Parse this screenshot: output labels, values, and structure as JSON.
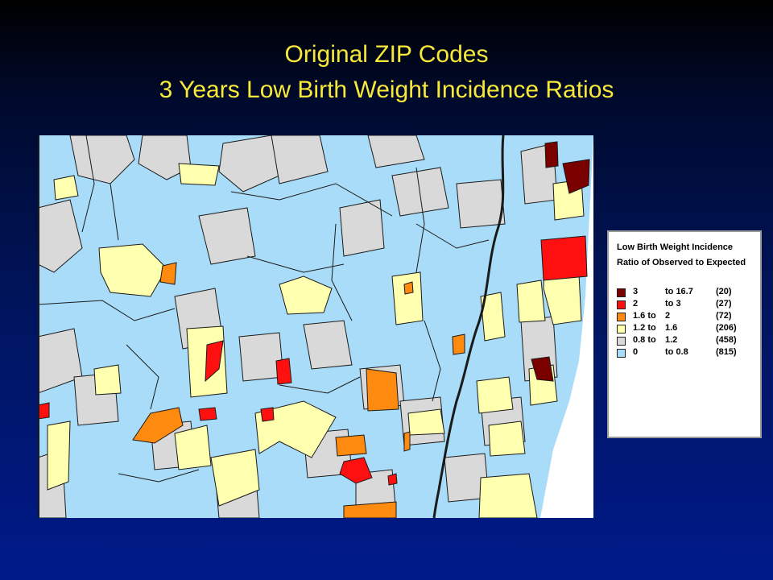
{
  "title": {
    "line1": "Original ZIP Codes",
    "line2": "3 Years Low Birth Weight Incidence Ratios"
  },
  "colors": {
    "cat_3_16_7": "#7a0000",
    "cat_2_3": "#ff1010",
    "cat_1_6_2": "#ff8a10",
    "cat_1_2_1_6": "#ffffb0",
    "cat_0_8_1_2": "#d9d9d9",
    "cat_0_0_8": "#a8dcf8",
    "boundary": "#1a1a1a"
  },
  "legend": {
    "title_line1": "Low Birth Weight Incidence",
    "title_line2": "Ratio of Observed to Expected",
    "rows": [
      {
        "low": "3",
        "high": "to 16.7",
        "count": "(20)",
        "color": "#7a0000"
      },
      {
        "low": "2",
        "high": "to   3",
        "count": "(27)",
        "color": "#ff1010"
      },
      {
        "low": "1.6 to",
        "high": "2",
        "count": "(72)",
        "color": "#ff8a10"
      },
      {
        "low": "1.2 to",
        "high": "1.6",
        "count": "(206)",
        "color": "#ffffb0"
      },
      {
        "low": "0.8 to",
        "high": "1.2",
        "count": "(458)",
        "color": "#d9d9d9"
      },
      {
        "low": "0",
        "high": "to 0.8",
        "count": "(815)",
        "color": "#a8dcf8"
      }
    ]
  }
}
